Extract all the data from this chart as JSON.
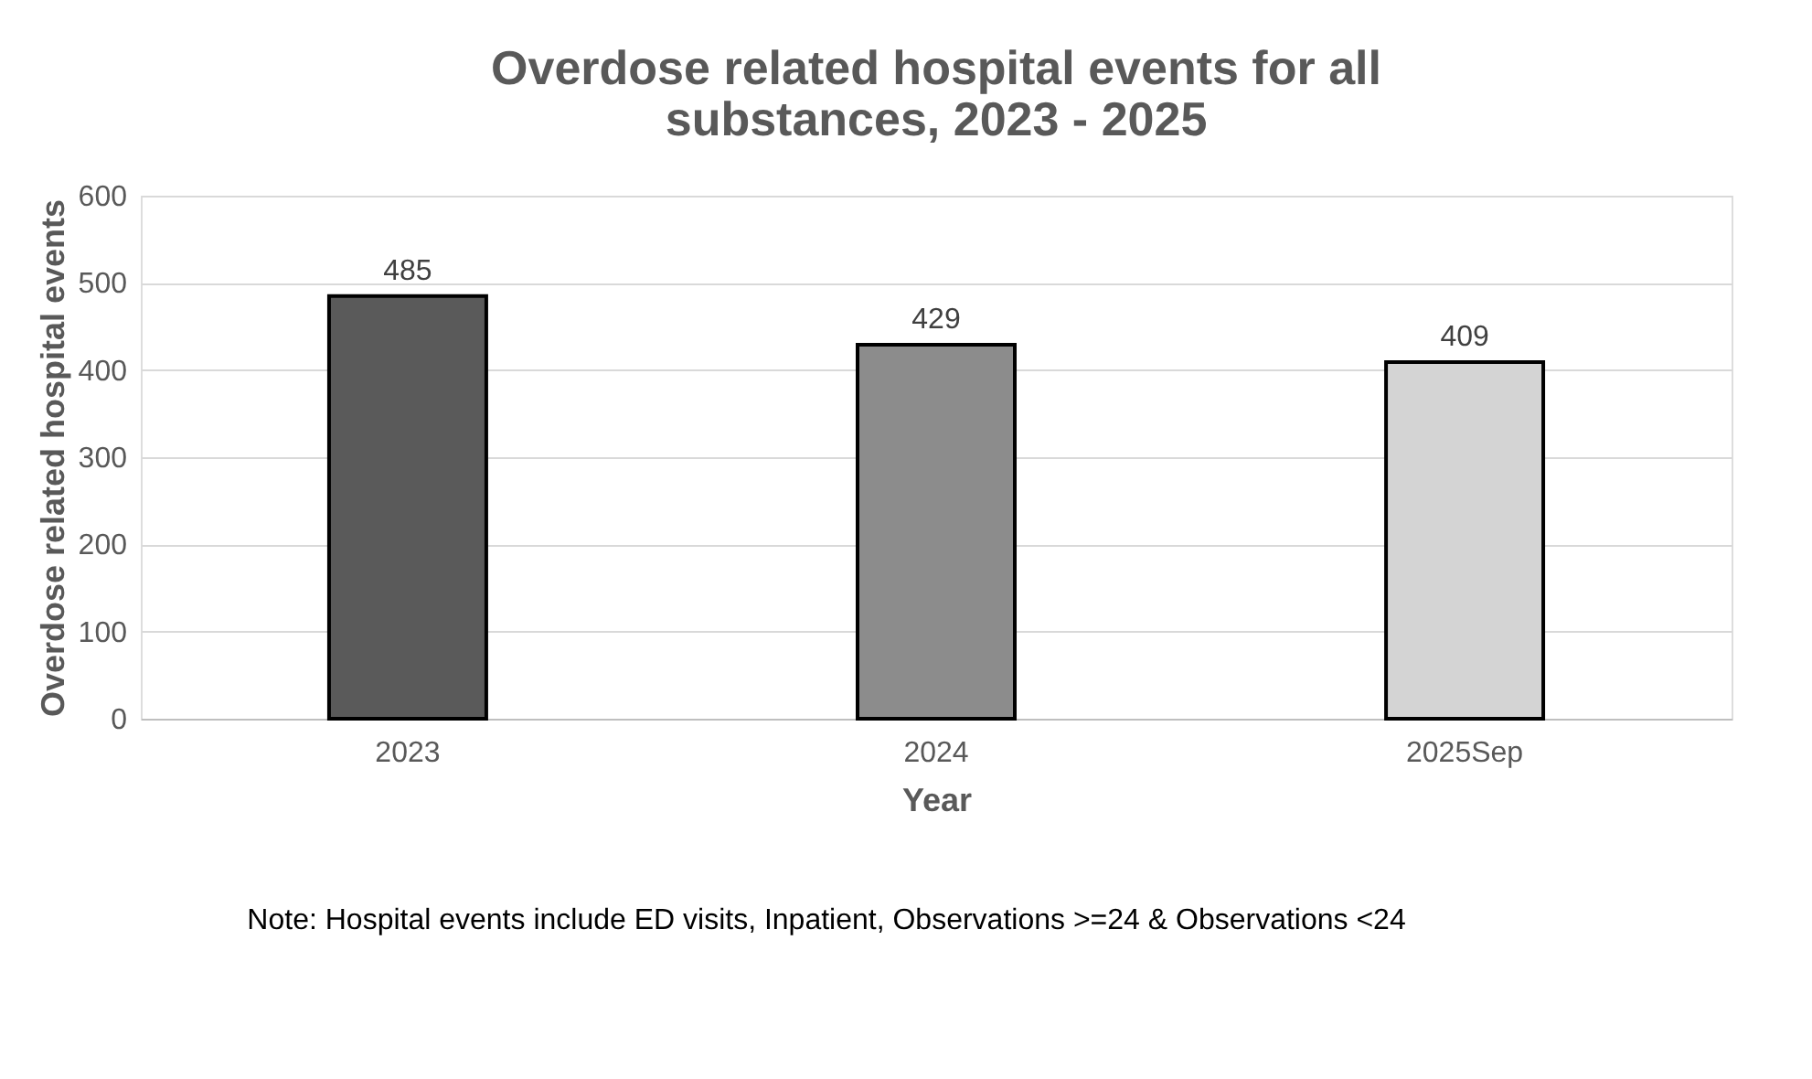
{
  "chart_data": {
    "type": "bar",
    "title": "Overdose related hospital events for all substances, 2023 - 2025",
    "categories": [
      "2023",
      "2024",
      "2025Sep"
    ],
    "values": [
      485,
      429,
      409
    ],
    "colors": [
      "#5a5a5a",
      "#8c8c8c",
      "#d4d4d4"
    ],
    "xlabel": "Year",
    "ylabel": "Overdose related hospital events",
    "ylim": [
      0,
      600
    ],
    "yticks": [
      0,
      100,
      200,
      300,
      400,
      500,
      600
    ],
    "grid": "y",
    "data_labels": true,
    "annotations": [
      "Note: Hospital events include ED visits, Inpatient, Observations >=24 & Observations <24"
    ]
  }
}
